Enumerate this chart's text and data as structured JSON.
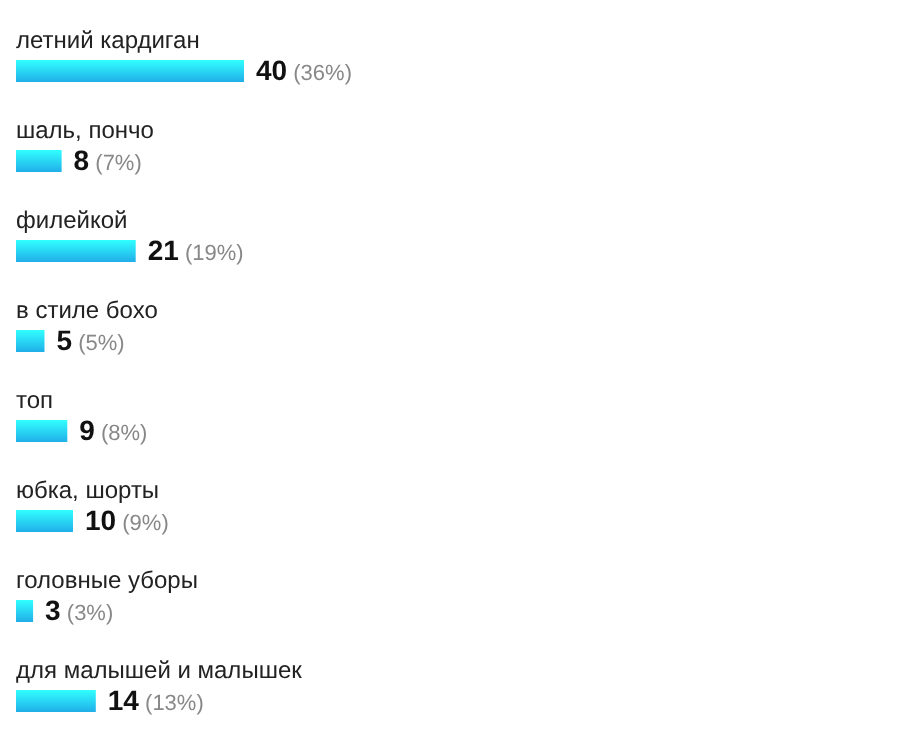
{
  "chart_data": {
    "type": "bar",
    "orientation": "horizontal",
    "categories": [
      "летний кардиган",
      "шаль, пончо",
      "филейкой",
      "в стиле бохо",
      "топ",
      "юбка, шорты",
      "головные уборы",
      "для малышей и малышек"
    ],
    "values": [
      40,
      8,
      21,
      5,
      9,
      10,
      3,
      14
    ],
    "value_labels": [
      "40 (36%)",
      "8 (7%)",
      "21 (19%)",
      "5 (5%)",
      "9 (8%)",
      "10 (9%)",
      "3 (3%)",
      "14 (13%)"
    ],
    "color": "#20aee8"
  }
}
